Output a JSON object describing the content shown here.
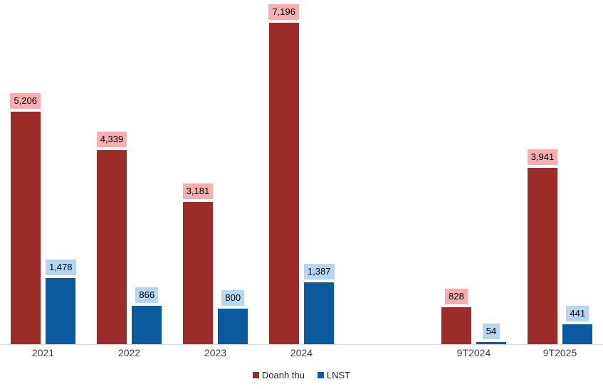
{
  "chart_data": {
    "type": "bar",
    "title": "",
    "categories": [
      "2021",
      "2022",
      "2023",
      "2024",
      "",
      "9T2024",
      "9T2025"
    ],
    "series": [
      {
        "name": "Doanh thu",
        "color": "#9C2B2A",
        "label_bg": "#F8AEAE",
        "values": [
          5206,
          4339,
          3181,
          7196,
          null,
          828,
          3941
        ],
        "labels": [
          "5,206",
          "4,339",
          "3,181",
          "7,196",
          "",
          "828",
          "3,941"
        ]
      },
      {
        "name": "LNST",
        "color": "#0B5A9E",
        "label_bg": "#B3D6F2",
        "values": [
          1478,
          866,
          800,
          1387,
          null,
          54,
          441
        ],
        "labels": [
          "1,478",
          "866",
          "800",
          "1,387",
          "",
          "54",
          "441"
        ]
      }
    ],
    "ylim": [
      0,
      7600
    ],
    "xlabel": "",
    "ylabel": "",
    "grid": false,
    "y_axis_visible": false,
    "legend_position": "bottom-center",
    "axis_line_color": "#D9D9D9",
    "data_labels_visible": true
  }
}
